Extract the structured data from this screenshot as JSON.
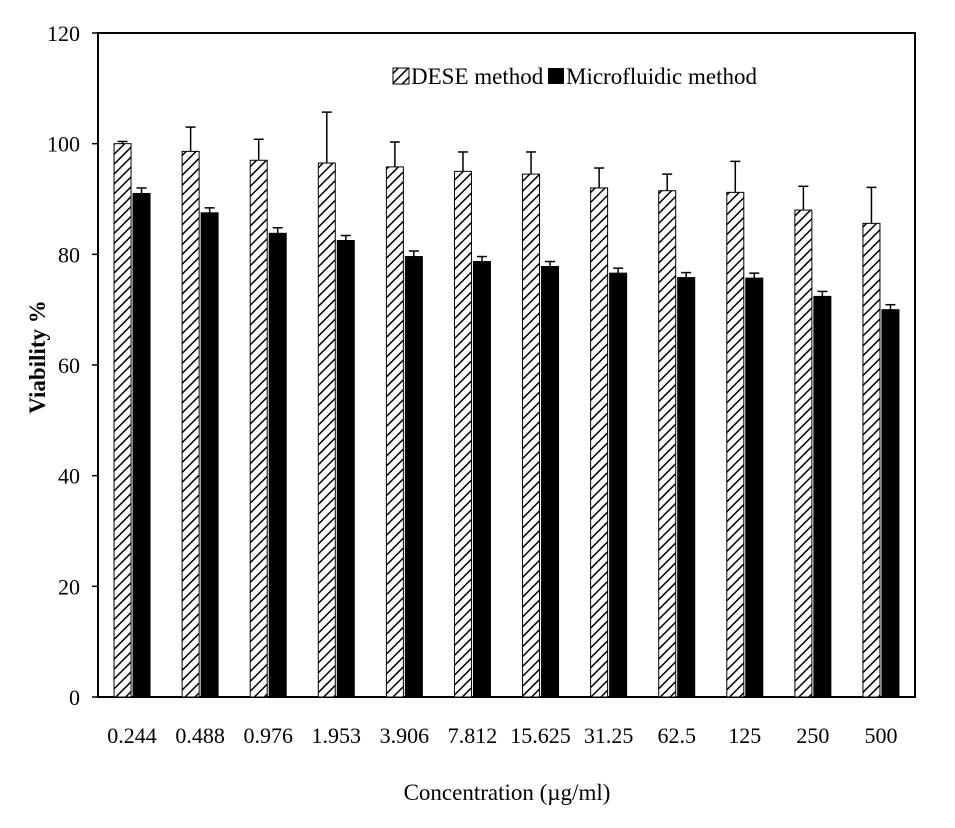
{
  "chart_data": {
    "type": "bar",
    "xlabel": "Concentration (µg/ml)",
    "ylabel": "Viability %",
    "ylim": [
      0,
      120
    ],
    "yticks": [
      0,
      20,
      40,
      60,
      80,
      100,
      120
    ],
    "categories": [
      "0.244",
      "0.488",
      "0.976",
      "1.953",
      "3.906",
      "7.812",
      "15.625",
      "31.25",
      "62.5",
      "125",
      "250",
      "500"
    ],
    "series": [
      {
        "name": "DESE method",
        "pattern": "diagonal-hatch",
        "values": [
          100,
          98.6,
          97.0,
          96.5,
          95.8,
          95.0,
          94.5,
          92.0,
          91.5,
          91.2,
          88.0,
          85.6
        ],
        "errors": [
          0.4,
          4.4,
          3.8,
          9.2,
          4.5,
          3.5,
          4.0,
          3.6,
          3.0,
          5.6,
          4.3,
          6.5
        ]
      },
      {
        "name": "Microfluidic method",
        "pattern": "solid",
        "color": "#000000",
        "values": [
          91.0,
          87.5,
          83.8,
          82.5,
          79.6,
          78.7,
          77.8,
          76.6,
          75.8,
          75.7,
          72.4,
          70.0
        ],
        "errors": [
          1.0,
          0.9,
          1.0,
          0.9,
          1.0,
          0.9,
          0.9,
          0.9,
          0.9,
          0.9,
          0.9,
          0.9
        ]
      }
    ],
    "grid": false,
    "legend_position": "top-right"
  }
}
